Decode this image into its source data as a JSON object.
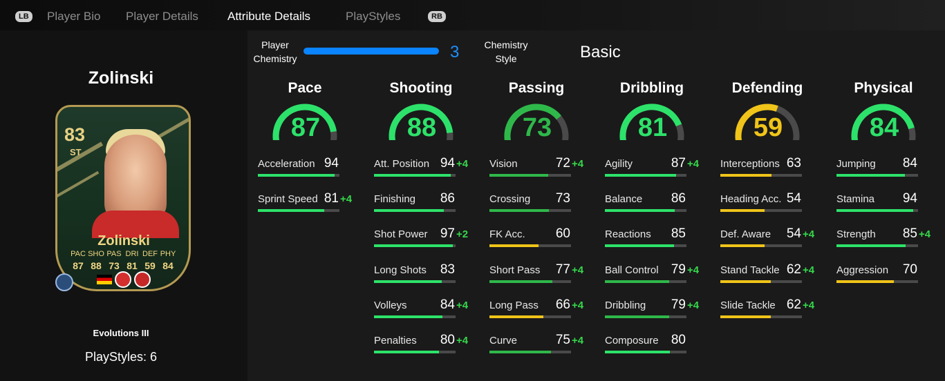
{
  "nav": {
    "lb": "LB",
    "rb": "RB",
    "tabs": [
      "Player Bio",
      "Player Details",
      "Attribute Details",
      "PlayStyles"
    ],
    "active_tab": "Attribute Details"
  },
  "player": {
    "name": "Zolinski",
    "card_name": "Zolinski",
    "rating": "83",
    "position": "ST",
    "card_stat_labels": [
      "PAC",
      "SHO",
      "PAS",
      "DRI",
      "DEF",
      "PHY"
    ],
    "card_stat_values": [
      "87",
      "88",
      "73",
      "81",
      "59",
      "84"
    ],
    "subtitle": "Evolutions III",
    "playstyles": "PlayStyles: 6"
  },
  "chemistry": {
    "player_label_line1": "Player",
    "player_label_line2": "Chemistry",
    "value": "3",
    "progress": 1.0,
    "style_label_line1": "Chemistry",
    "style_label_line2": "Style",
    "style": "Basic",
    "bar_color": "#0b84ff"
  },
  "colors": {
    "high": "#2de26a",
    "mid": "#2fb84a",
    "low": "#f0c419",
    "boost": "#35d84b"
  },
  "categories": [
    {
      "name": "Pace",
      "value": "87",
      "tier": "high",
      "stats": [
        {
          "name": "Acceleration",
          "value": "94",
          "boost": "",
          "tier": "high"
        },
        {
          "name": "Sprint Speed",
          "value": "81",
          "boost": "+4",
          "tier": "high"
        }
      ]
    },
    {
      "name": "Shooting",
      "value": "88",
      "tier": "high",
      "stats": [
        {
          "name": "Att. Position",
          "value": "94",
          "boost": "+4",
          "tier": "high"
        },
        {
          "name": "Finishing",
          "value": "86",
          "boost": "",
          "tier": "high"
        },
        {
          "name": "Shot Power",
          "value": "97",
          "boost": "+2",
          "tier": "high"
        },
        {
          "name": "Long Shots",
          "value": "83",
          "boost": "",
          "tier": "high"
        },
        {
          "name": "Volleys",
          "value": "84",
          "boost": "+4",
          "tier": "high"
        },
        {
          "name": "Penalties",
          "value": "80",
          "boost": "+4",
          "tier": "high"
        }
      ]
    },
    {
      "name": "Passing",
      "value": "73",
      "tier": "mid",
      "stats": [
        {
          "name": "Vision",
          "value": "72",
          "boost": "+4",
          "tier": "mid"
        },
        {
          "name": "Crossing",
          "value": "73",
          "boost": "",
          "tier": "mid"
        },
        {
          "name": "FK Acc.",
          "value": "60",
          "boost": "",
          "tier": "low"
        },
        {
          "name": "Short Pass",
          "value": "77",
          "boost": "+4",
          "tier": "mid"
        },
        {
          "name": "Long Pass",
          "value": "66",
          "boost": "+4",
          "tier": "low"
        },
        {
          "name": "Curve",
          "value": "75",
          "boost": "+4",
          "tier": "mid"
        }
      ]
    },
    {
      "name": "Dribbling",
      "value": "81",
      "tier": "high",
      "stats": [
        {
          "name": "Agility",
          "value": "87",
          "boost": "+4",
          "tier": "high"
        },
        {
          "name": "Balance",
          "value": "86",
          "boost": "",
          "tier": "high"
        },
        {
          "name": "Reactions",
          "value": "85",
          "boost": "",
          "tier": "high"
        },
        {
          "name": "Ball Control",
          "value": "79",
          "boost": "+4",
          "tier": "mid"
        },
        {
          "name": "Dribbling",
          "value": "79",
          "boost": "+4",
          "tier": "mid"
        },
        {
          "name": "Composure",
          "value": "80",
          "boost": "",
          "tier": "high"
        }
      ]
    },
    {
      "name": "Defending",
      "value": "59",
      "tier": "low",
      "stats": [
        {
          "name": "Interceptions",
          "value": "63",
          "boost": "",
          "tier": "low"
        },
        {
          "name": "Heading Acc.",
          "value": "54",
          "boost": "",
          "tier": "low"
        },
        {
          "name": "Def. Aware",
          "value": "54",
          "boost": "+4",
          "tier": "low"
        },
        {
          "name": "Stand Tackle",
          "value": "62",
          "boost": "+4",
          "tier": "low"
        },
        {
          "name": "Slide Tackle",
          "value": "62",
          "boost": "+4",
          "tier": "low"
        }
      ]
    },
    {
      "name": "Physical",
      "value": "84",
      "tier": "high",
      "stats": [
        {
          "name": "Jumping",
          "value": "84",
          "boost": "",
          "tier": "high"
        },
        {
          "name": "Stamina",
          "value": "94",
          "boost": "",
          "tier": "high"
        },
        {
          "name": "Strength",
          "value": "85",
          "boost": "+4",
          "tier": "high"
        },
        {
          "name": "Aggression",
          "value": "70",
          "boost": "",
          "tier": "low"
        }
      ]
    }
  ]
}
